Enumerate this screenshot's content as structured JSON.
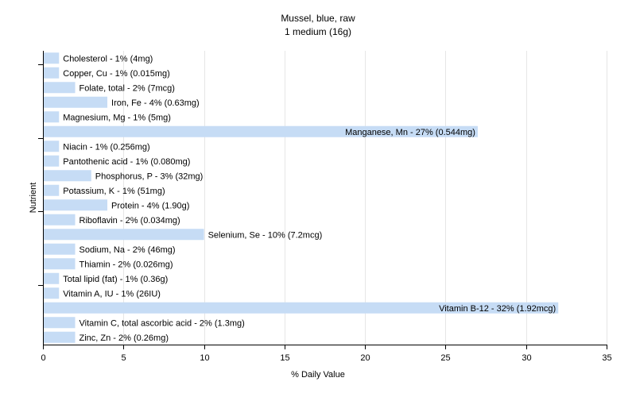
{
  "chart_data": {
    "type": "bar",
    "orientation": "horizontal",
    "title": "Mussel, blue, raw",
    "subtitle": "1 medium (16g)",
    "xlabel": "% Daily Value",
    "ylabel": "Nutrient",
    "xlim": [
      0,
      35
    ],
    "xticks": [
      0,
      5,
      10,
      15,
      20,
      25,
      30,
      35
    ],
    "grid": true,
    "bar_color": "#c6dcf5",
    "bars": [
      {
        "label": "Cholesterol - 1% (4mg)",
        "value": 1
      },
      {
        "label": "Copper, Cu - 1% (0.015mg)",
        "value": 1
      },
      {
        "label": "Folate, total - 2% (7mcg)",
        "value": 2
      },
      {
        "label": "Iron, Fe - 4% (0.63mg)",
        "value": 4
      },
      {
        "label": "Magnesium, Mg - 1% (5mg)",
        "value": 1
      },
      {
        "label": "Manganese, Mn - 27% (0.544mg)",
        "value": 27
      },
      {
        "label": "Niacin - 1% (0.256mg)",
        "value": 1
      },
      {
        "label": "Pantothenic acid - 1% (0.080mg)",
        "value": 1
      },
      {
        "label": "Phosphorus, P - 3% (32mg)",
        "value": 3
      },
      {
        "label": "Potassium, K - 1% (51mg)",
        "value": 1
      },
      {
        "label": "Protein - 4% (1.90g)",
        "value": 4
      },
      {
        "label": "Riboflavin - 2% (0.034mg)",
        "value": 2
      },
      {
        "label": "Selenium, Se - 10% (7.2mcg)",
        "value": 10
      },
      {
        "label": "Sodium, Na - 2% (46mg)",
        "value": 2
      },
      {
        "label": "Thiamin - 2% (0.026mg)",
        "value": 2
      },
      {
        "label": "Total lipid (fat) - 1% (0.36g)",
        "value": 1
      },
      {
        "label": "Vitamin A, IU - 1% (26IU)",
        "value": 1
      },
      {
        "label": "Vitamin B-12 - 32% (1.92mcg)",
        "value": 32
      },
      {
        "label": "Vitamin C, total ascorbic acid - 2% (1.3mg)",
        "value": 2
      },
      {
        "label": "Zinc, Zn - 2% (0.26mg)",
        "value": 2
      }
    ]
  }
}
